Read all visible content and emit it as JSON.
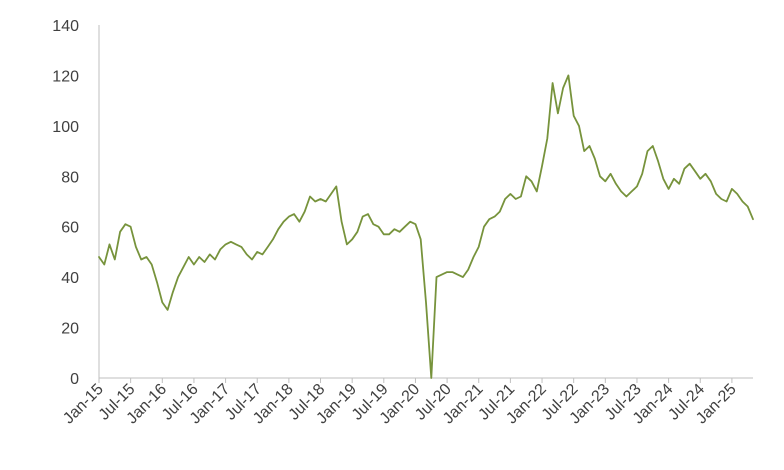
{
  "chart_data": {
    "type": "line",
    "title": "",
    "xlabel": "",
    "ylabel": "",
    "ylim": [
      0,
      140
    ],
    "yticks": [
      "0",
      "20",
      "40",
      "60",
      "80",
      "100",
      "120",
      "140"
    ],
    "xlim": [
      "2015-01",
      "2025-05"
    ],
    "xticks": [
      "Jan-15",
      "Jul-15",
      "Jan-16",
      "Jul-16",
      "Jan-17",
      "Jul-17",
      "Jan-18",
      "Jul-18",
      "Jan-19",
      "Jul-19",
      "Jan-20",
      "Jul-20",
      "Jan-21",
      "Jul-21",
      "Jan-22",
      "Jul-22",
      "Jan-23",
      "Jul-23",
      "Jan-24",
      "Jul-24",
      "Jan-25"
    ],
    "grid": false,
    "legend": "none",
    "colors": {
      "line": "#77933c",
      "axis": "#bfbfbf",
      "text": "#404040"
    },
    "series": [
      {
        "x": [
          "2015-01",
          "2015-02",
          "2015-03",
          "2015-04",
          "2015-05",
          "2015-06",
          "2015-07",
          "2015-08",
          "2015-09",
          "2015-10",
          "2015-11",
          "2015-12",
          "2016-01",
          "2016-02",
          "2016-03",
          "2016-04",
          "2016-05",
          "2016-06",
          "2016-07",
          "2016-08",
          "2016-09",
          "2016-10",
          "2016-11",
          "2016-12",
          "2017-01",
          "2017-02",
          "2017-03",
          "2017-04",
          "2017-05",
          "2017-06",
          "2017-07",
          "2017-08",
          "2017-09",
          "2017-10",
          "2017-11",
          "2017-12",
          "2018-01",
          "2018-02",
          "2018-03",
          "2018-04",
          "2018-05",
          "2018-06",
          "2018-07",
          "2018-08",
          "2018-09",
          "2018-10",
          "2018-11",
          "2018-12",
          "2019-01",
          "2019-02",
          "2019-03",
          "2019-04",
          "2019-05",
          "2019-06",
          "2019-07",
          "2019-08",
          "2019-09",
          "2019-10",
          "2019-11",
          "2019-12",
          "2020-01",
          "2020-02",
          "2020-03",
          "2020-04",
          "2020-05",
          "2020-06",
          "2020-07",
          "2020-08",
          "2020-09",
          "2020-10",
          "2020-11",
          "2020-12",
          "2021-01",
          "2021-02",
          "2021-03",
          "2021-04",
          "2021-05",
          "2021-06",
          "2021-07",
          "2021-08",
          "2021-09",
          "2021-10",
          "2021-11",
          "2021-12",
          "2022-01",
          "2022-02",
          "2022-03",
          "2022-04",
          "2022-05",
          "2022-06",
          "2022-07",
          "2022-08",
          "2022-09",
          "2022-10",
          "2022-11",
          "2022-12",
          "2023-01",
          "2023-02",
          "2023-03",
          "2023-04",
          "2023-05",
          "2023-06",
          "2023-07",
          "2023-08",
          "2023-09",
          "2023-10",
          "2023-11",
          "2023-12",
          "2024-01",
          "2024-02",
          "2024-03",
          "2024-04",
          "2024-05",
          "2024-06",
          "2024-07",
          "2024-08",
          "2024-09",
          "2024-10",
          "2024-11",
          "2024-12",
          "2025-01",
          "2025-02",
          "2025-03",
          "2025-04",
          "2025-05"
        ],
        "values": [
          48,
          45,
          53,
          47,
          58,
          61,
          60,
          52,
          47,
          48,
          45,
          38,
          30,
          27,
          34,
          40,
          44,
          48,
          45,
          48,
          46,
          49,
          47,
          51,
          53,
          54,
          53,
          52,
          49,
          47,
          50,
          49,
          52,
          55,
          59,
          62,
          64,
          65,
          62,
          66,
          72,
          70,
          71,
          70,
          73,
          76,
          62,
          53,
          55,
          58,
          64,
          65,
          61,
          60,
          57,
          57,
          59,
          58,
          60,
          62,
          61,
          55,
          30,
          0,
          40,
          41,
          42,
          42,
          41,
          40,
          43,
          48,
          52,
          60,
          63,
          64,
          66,
          71,
          73,
          71,
          72,
          80,
          78,
          74,
          84,
          95,
          117,
          105,
          115,
          120,
          104,
          100,
          90,
          92,
          87,
          80,
          78,
          81,
          77,
          74,
          72,
          74,
          76,
          81,
          90,
          92,
          86,
          79,
          75,
          79,
          77,
          83,
          85,
          82,
          79,
          81,
          78,
          73,
          71,
          70,
          75,
          73,
          70,
          68,
          63
        ]
      }
    ]
  }
}
